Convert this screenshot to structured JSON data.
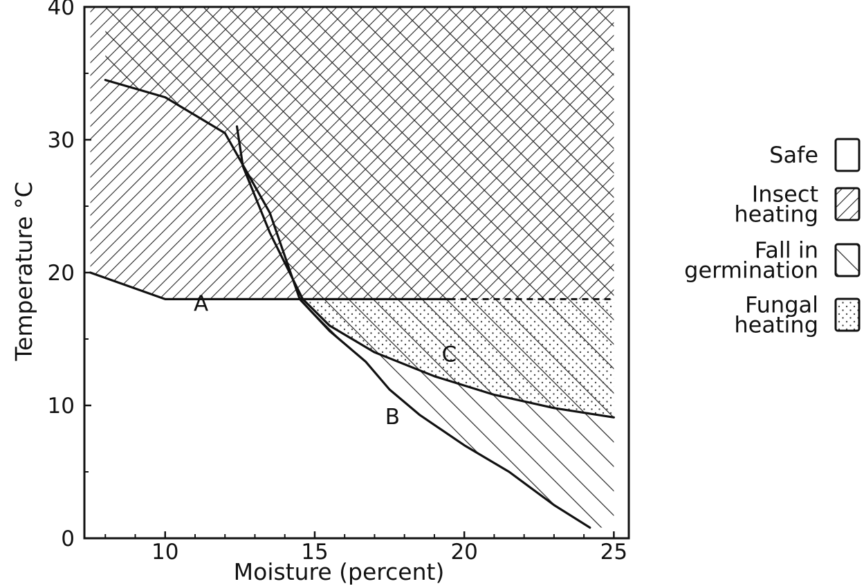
{
  "chart_data": {
    "type": "area",
    "title": "",
    "xlabel": "Moisture (percent)",
    "ylabel": "Temperature °C",
    "xlim": [
      7.3,
      25.5
    ],
    "ylim": [
      0,
      40
    ],
    "x_ticks": [
      10,
      15,
      20,
      25
    ],
    "y_ticks": [
      0,
      10,
      20,
      30,
      40
    ],
    "x_tick_labels": [
      "10",
      "15",
      "20",
      "25"
    ],
    "y_tick_labels": [
      "0",
      "10",
      "20",
      "30",
      "40"
    ],
    "grid": false,
    "legend_position": "right",
    "legend": [
      {
        "key": "safe",
        "label": "Safe",
        "pattern": "none"
      },
      {
        "key": "insect",
        "label": "Insect heating",
        "lines": [
          "Insect",
          "heating"
        ],
        "pattern": "backslash-hatch"
      },
      {
        "key": "germination",
        "label": "Fall in germination",
        "lines": [
          "Fall in",
          "germination"
        ],
        "pattern": "slash-hatch"
      },
      {
        "key": "fungal",
        "label": "Fungal heating",
        "lines": [
          "Fungal",
          "heating"
        ],
        "pattern": "dots"
      }
    ],
    "curves": [
      {
        "name": "A",
        "label": "A",
        "label_at": [
          11.2,
          17.1
        ],
        "points": [
          [
            7.5,
            20
          ],
          [
            10,
            18
          ],
          [
            19.5,
            18
          ]
        ],
        "dashed_extension": [
          [
            19.5,
            18
          ],
          [
            25,
            18
          ]
        ]
      },
      {
        "name": "B",
        "label": "B",
        "label_at": [
          17.6,
          8.6
        ],
        "points": [
          [
            8,
            34.5
          ],
          [
            10,
            33.2
          ],
          [
            12,
            30.5
          ],
          [
            13.5,
            24.5
          ],
          [
            14.5,
            18
          ],
          [
            15.5,
            15.6
          ],
          [
            16.7,
            13.3
          ],
          [
            17.5,
            11.2
          ],
          [
            18.5,
            9.3
          ],
          [
            20,
            7
          ],
          [
            21.5,
            5
          ],
          [
            23,
            2.5
          ],
          [
            24.2,
            0.8
          ]
        ]
      },
      {
        "name": "C",
        "label": "C",
        "label_at": [
          19.5,
          13.3
        ],
        "points": [
          [
            12.4,
            31
          ],
          [
            12.6,
            28
          ],
          [
            13.5,
            23
          ],
          [
            14.6,
            18
          ],
          [
            15.5,
            16
          ],
          [
            17,
            14
          ],
          [
            19,
            12.2
          ],
          [
            21,
            10.8
          ],
          [
            23,
            9.8
          ],
          [
            25,
            9.1
          ]
        ]
      }
    ],
    "regions": [
      {
        "name": "insect-heating",
        "key": "insect",
        "polygon": [
          [
            7.5,
            40
          ],
          [
            25,
            40
          ],
          [
            25,
            18
          ],
          [
            10,
            18
          ],
          [
            7.5,
            20
          ]
        ]
      },
      {
        "name": "fall-in-germination",
        "key": "germination",
        "polygon": [
          [
            8,
            40
          ],
          [
            25,
            40
          ],
          [
            25,
            0.8
          ],
          [
            24.2,
            0.8
          ],
          [
            23,
            2.5
          ],
          [
            21.5,
            5
          ],
          [
            20,
            7
          ],
          [
            18.5,
            9.3
          ],
          [
            17.5,
            11.2
          ],
          [
            16.7,
            13.3
          ],
          [
            15.5,
            15.6
          ],
          [
            14.5,
            18
          ],
          [
            13.5,
            24.5
          ],
          [
            12,
            30.5
          ],
          [
            10,
            33.2
          ],
          [
            8,
            34.5
          ]
        ]
      },
      {
        "name": "fungal-heating",
        "key": "fungal",
        "polygon": [
          [
            14.5,
            18
          ],
          [
            25,
            18
          ],
          [
            25,
            9.1
          ],
          [
            23,
            9.8
          ],
          [
            21,
            10.8
          ],
          [
            19,
            12.2
          ],
          [
            17,
            14
          ],
          [
            15.5,
            16
          ]
        ]
      }
    ]
  }
}
